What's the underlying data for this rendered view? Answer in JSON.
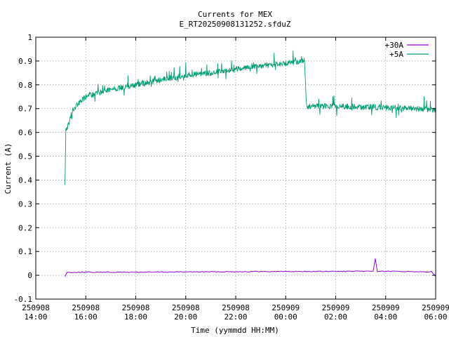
{
  "chart_data": {
    "type": "line",
    "title": "Currents for MEX",
    "subtitle": "E_RT20250908131252.sfduZ",
    "xlabel": "Time (yymmdd HH:MM)",
    "ylabel": "Current (A)",
    "xlim": [
      "250908 14:00",
      "250909 06:00"
    ],
    "ylim": [
      -0.1,
      1
    ],
    "yticks": [
      "-0.1",
      "0",
      "0.1",
      "0.2",
      "0.3",
      "0.4",
      "0.5",
      "0.6",
      "0.7",
      "0.8",
      "0.9",
      "1"
    ],
    "xticks": [
      {
        "date": "250908",
        "time": "14:00"
      },
      {
        "date": "250908",
        "time": "16:00"
      },
      {
        "date": "250908",
        "time": "18:00"
      },
      {
        "date": "250908",
        "time": "20:00"
      },
      {
        "date": "250908",
        "time": "22:00"
      },
      {
        "date": "250909",
        "time": "00:00"
      },
      {
        "date": "250909",
        "time": "02:00"
      },
      {
        "date": "250909",
        "time": "04:00"
      },
      {
        "date": "250909",
        "time": "06:00"
      }
    ],
    "grid": true,
    "legend_position": "top-right",
    "series": [
      {
        "name": "+30A",
        "color": "#9400d3",
        "points": [
          [
            "250908 15:10",
            -0.005
          ],
          [
            "250908 15:15",
            0.012
          ],
          [
            "250908 16:00",
            0.013
          ],
          [
            "250908 18:00",
            0.013
          ],
          [
            "250908 20:00",
            0.014
          ],
          [
            "250908 22:00",
            0.015
          ],
          [
            "250909 00:00",
            0.016
          ],
          [
            "250909 02:00",
            0.016
          ],
          [
            "250909 03:30",
            0.017
          ],
          [
            "250909 03:35",
            0.07
          ],
          [
            "250909 03:40",
            0.017
          ],
          [
            "250909 05:50",
            0.015
          ],
          [
            "250909 06:00",
            -0.005
          ]
        ]
      },
      {
        "name": "+5A",
        "color": "#009e73",
        "points": [
          [
            "250908 15:10",
            0.38
          ],
          [
            "250908 15:12",
            0.6
          ],
          [
            "250908 15:30",
            0.7
          ],
          [
            "250908 16:00",
            0.75
          ],
          [
            "250908 17:00",
            0.78
          ],
          [
            "250908 18:00",
            0.8
          ],
          [
            "250908 19:00",
            0.82
          ],
          [
            "250908 20:00",
            0.84
          ],
          [
            "250908 21:00",
            0.85
          ],
          [
            "250908 22:00",
            0.865
          ],
          [
            "250908 23:00",
            0.88
          ],
          [
            "250909 00:00",
            0.89
          ],
          [
            "250909 00:45",
            0.9
          ],
          [
            "250909 00:50",
            0.71
          ],
          [
            "250909 02:00",
            0.71
          ],
          [
            "250909 04:00",
            0.705
          ],
          [
            "250909 06:00",
            0.695
          ]
        ]
      }
    ]
  }
}
